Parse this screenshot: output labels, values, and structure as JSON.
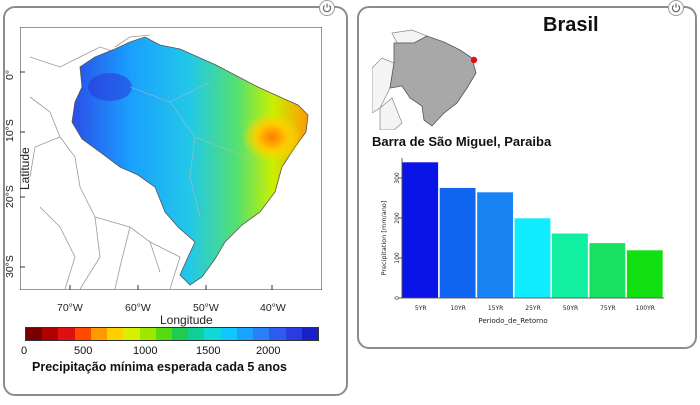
{
  "left_panel": {
    "map": {
      "x_ticks": [
        "70°W",
        "60°W",
        "50°W",
        "40°W"
      ],
      "y_ticks": [
        "0°",
        "10°S",
        "20°S",
        "30°S"
      ],
      "xlabel": "Longitude",
      "ylabel": "Latitude"
    },
    "colorbar": {
      "ticks": [
        "0",
        "500",
        "1000",
        "1500",
        "2000"
      ],
      "colors": [
        "#7a0000",
        "#b00000",
        "#e01010",
        "#ff4a00",
        "#ff9a00",
        "#ffd000",
        "#d8f000",
        "#9ee800",
        "#55dc10",
        "#20cc50",
        "#10d09a",
        "#10d8d8",
        "#10c8ff",
        "#1aa4ff",
        "#2a80f8",
        "#2a5cf0",
        "#2a3ce0",
        "#1a20c8"
      ],
      "title": "Precipitação mínima esperada cada 5 anos"
    }
  },
  "right_panel": {
    "title": "Brasil",
    "location": "Barra de São Miguel, Paraiba",
    "chart_data": {
      "type": "bar",
      "categories": [
        "5YR",
        "10YR",
        "15YR",
        "25YR",
        "50YR",
        "75YR",
        "100YR"
      ],
      "values": [
        340,
        276,
        265,
        200,
        162,
        138,
        120
      ],
      "colors": [
        "#0a14e6",
        "#1066f0",
        "#1a84f5",
        "#10ecff",
        "#10f0a0",
        "#18e060",
        "#10e010"
      ],
      "ylabel": "Precipitation [mm/ano]",
      "xlabel": "Periodo_de_Retorno",
      "y_ticks": [
        0,
        100,
        200,
        300
      ],
      "ylim": [
        0,
        350
      ]
    }
  }
}
